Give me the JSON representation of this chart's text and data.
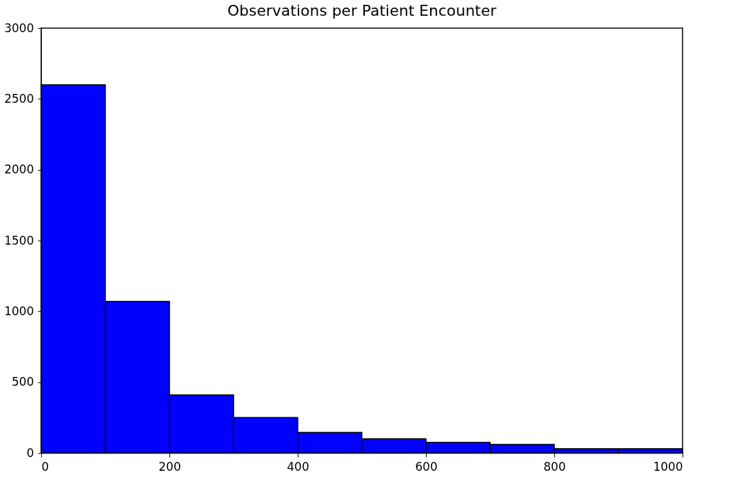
{
  "chart_data": {
    "type": "histogram",
    "title": "Observations per Patient Encounter",
    "bins": [
      0,
      100,
      200,
      300,
      400,
      500,
      600,
      700,
      800,
      900,
      1000
    ],
    "values": [
      2600,
      1070,
      410,
      250,
      145,
      100,
      75,
      60,
      30,
      30
    ],
    "color": "#0000ff",
    "xlim": [
      0,
      1000
    ],
    "xticks": [
      0,
      200,
      400,
      600,
      800,
      1000
    ],
    "ylim": [
      0,
      3000
    ],
    "yticks": [
      0,
      500,
      1000,
      1500,
      2000,
      2500,
      3000
    ],
    "grid": false
  }
}
